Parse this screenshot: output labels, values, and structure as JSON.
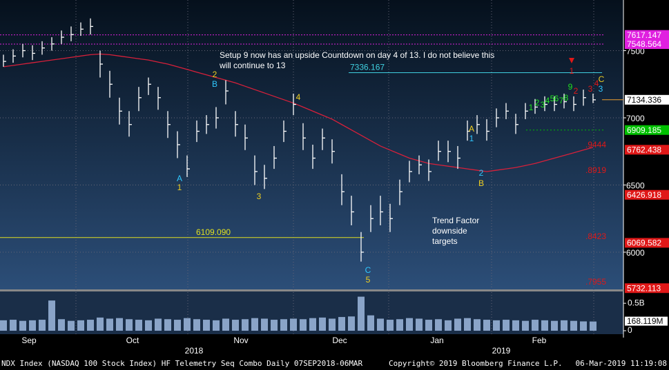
{
  "chart_data": {
    "type": "ohlc",
    "annotation": "Setup 9 now has an upside Countdown on day 4 of 13.  I do not believe this will continue to 13",
    "annotation2": "Trend Factor downside targets",
    "footer": "NDX Index (NASDAQ 100 Stock Index) HF Telemetry Seq Combo  Daily 07SEP2018-06MAR",
    "copyright": "Copyright© 2019 Bloomberg Finance L.P.",
    "timestamp": "06-Mar-2019 11:19:08",
    "months": [
      "Sep",
      "Oct",
      "Nov",
      "Dec",
      "Jan",
      "Feb"
    ],
    "years": [
      "2018",
      "2019"
    ],
    "close": [
      7420,
      7460,
      7500,
      7480,
      7520,
      7550,
      7600,
      7620,
      7660,
      7680,
      7400,
      7250,
      7050,
      6950,
      7150,
      7250,
      7150,
      6950,
      6800,
      6620,
      6900,
      6950,
      7000,
      7200,
      6950,
      6850,
      6600,
      6550,
      6700,
      6900,
      7100,
      6850,
      6700,
      6850,
      6750,
      6450,
      6300,
      6000,
      6250,
      6300,
      6250,
      6450,
      6600,
      6650,
      6600,
      6750,
      6750,
      6700,
      6900,
      6950,
      6900,
      7000,
      7050,
      6950,
      7050,
      7080,
      7100,
      7100,
      7120,
      7100,
      7150,
      7134
    ],
    "high": [
      7470,
      7510,
      7550,
      7540,
      7570,
      7600,
      7650,
      7680,
      7710,
      7740,
      7500,
      7350,
      7150,
      7050,
      7230,
      7300,
      7230,
      7050,
      6900,
      6720,
      6980,
      7020,
      7080,
      7280,
      7050,
      6950,
      6720,
      6650,
      6790,
      6980,
      7180,
      6960,
      6800,
      6920,
      6840,
      6580,
      6420,
      6150,
      6350,
      6420,
      6360,
      6540,
      6680,
      6720,
      6690,
      6830,
      6830,
      6790,
      6980,
      7020,
      6990,
      7070,
      7110,
      7030,
      7110,
      7140,
      7160,
      7160,
      7180,
      7160,
      7210,
      7180
    ],
    "low": [
      7380,
      7410,
      7450,
      7430,
      7470,
      7500,
      7550,
      7570,
      7610,
      7620,
      7300,
      7150,
      6950,
      6860,
      7050,
      7170,
      7060,
      6850,
      6700,
      6560,
      6820,
      6880,
      6920,
      7100,
      6860,
      6760,
      6500,
      6470,
      6620,
      6820,
      7020,
      6760,
      6620,
      6760,
      6660,
      6350,
      6200,
      5930,
      6150,
      6200,
      6150,
      6350,
      6520,
      6580,
      6530,
      6680,
      6670,
      6620,
      6830,
      6880,
      6830,
      6930,
      6990,
      6880,
      6990,
      7030,
      7050,
      7050,
      7070,
      7050,
      7090,
      7110
    ],
    "ma": {
      "color": "#d8203a",
      "values": [
        7380,
        7390,
        7400,
        7410,
        7420,
        7430,
        7440,
        7450,
        7460,
        7470,
        7475,
        7470,
        7460,
        7450,
        7440,
        7430,
        7415,
        7400,
        7380,
        7360,
        7340,
        7320,
        7300,
        7280,
        7260,
        7235,
        7210,
        7185,
        7160,
        7135,
        7110,
        7080,
        7050,
        7020,
        6990,
        6950,
        6910,
        6870,
        6830,
        6790,
        6760,
        6730,
        6700,
        6680,
        6660,
        6650,
        6640,
        6630,
        6620,
        6610,
        6600,
        6610,
        6620,
        6630,
        6645,
        6660,
        6680,
        6700,
        6720,
        6740,
        6760,
        6780
      ]
    },
    "ylim": [
      5723,
      7877
    ],
    "yticks": [
      6000,
      6500,
      7000,
      7500
    ],
    "price_levels": [
      {
        "value": 7617.147,
        "color": "#e020e0"
      },
      {
        "value": 7548.564,
        "color": "#e020e0"
      },
      {
        "value": 7134.336,
        "color": "#ffffff"
      },
      {
        "value": 6909.185,
        "color": "#00c000"
      },
      {
        "value": 6762.438,
        "color": "#e01818"
      },
      {
        "value": 6426.918,
        "color": "#e01818"
      },
      {
        "value": 6069.582,
        "color": "#e01818"
      },
      {
        "value": 5732.113,
        "color": "#e01818"
      }
    ],
    "lines": [
      {
        "value": 7336.167,
        "color": "#40d0e0"
      },
      {
        "value": 6109.09,
        "label": "6109.090",
        "color": "#e0e020"
      }
    ],
    "trend_targets": [
      ".9444",
      ".8919",
      ".8423",
      ".7955"
    ],
    "setup_labels": [
      {
        "text": "A",
        "color": "#30c8ff"
      },
      {
        "text": "1",
        "color": "#f0d020"
      },
      {
        "text": "2",
        "color": "#f0d020"
      },
      {
        "text": "B",
        "color": "#30c8ff"
      },
      {
        "text": "3",
        "color": "#f0d020"
      },
      {
        "text": "4",
        "color": "#f0d020"
      },
      {
        "text": "C",
        "color": "#30c8ff"
      },
      {
        "text": "5",
        "color": "#f0d020"
      },
      {
        "text": "A",
        "color": "#f0d020"
      },
      {
        "text": "1",
        "color": "#30c8ff"
      },
      {
        "text": "2",
        "color": "#30c8ff"
      },
      {
        "text": "B",
        "color": "#f0d020"
      },
      {
        "text": "1",
        "color": "#20e020"
      },
      {
        "text": "2",
        "color": "#20e020"
      },
      {
        "text": "3",
        "color": "#20e020"
      },
      {
        "text": "4",
        "color": "#20e020"
      },
      {
        "text": "5",
        "color": "#20e020"
      },
      {
        "text": "6",
        "color": "#20e020"
      },
      {
        "text": "7",
        "color": "#20e020"
      },
      {
        "text": "8",
        "color": "#20e020"
      },
      {
        "text": "9",
        "color": "#20e020"
      },
      {
        "text": "2",
        "color": "#e01818"
      },
      {
        "text": "3",
        "color": "#e01818"
      },
      {
        "text": "4",
        "color": "#e01818"
      },
      {
        "text": "C",
        "color": "#f0d020"
      },
      {
        "text": "3",
        "color": "#30c8ff"
      },
      {
        "text": "1",
        "color": "#e01818"
      }
    ],
    "volume": [
      0.19,
      0.2,
      0.18,
      0.19,
      0.2,
      0.55,
      0.21,
      0.18,
      0.19,
      0.2,
      0.24,
      0.22,
      0.23,
      0.21,
      0.2,
      0.19,
      0.22,
      0.21,
      0.2,
      0.23,
      0.21,
      0.2,
      0.19,
      0.22,
      0.2,
      0.21,
      0.23,
      0.22,
      0.2,
      0.21,
      0.22,
      0.21,
      0.23,
      0.24,
      0.22,
      0.25,
      0.26,
      0.62,
      0.28,
      0.22,
      0.2,
      0.21,
      0.23,
      0.22,
      0.2,
      0.21,
      0.19,
      0.22,
      0.23,
      0.21,
      0.2,
      0.19,
      0.2,
      0.19,
      0.18,
      0.2,
      0.19,
      0.18,
      0.19,
      0.18,
      0.17,
      0.168
    ],
    "volume_color": "#8aa4c8",
    "vlim": [
      0,
      0.69
    ],
    "vticks": [
      {
        "value": 0,
        "label": "0"
      },
      {
        "value": 0.5,
        "label": "0.5B"
      }
    ],
    "volume_last": {
      "value": 0.168119,
      "label": "168.119M"
    }
  }
}
